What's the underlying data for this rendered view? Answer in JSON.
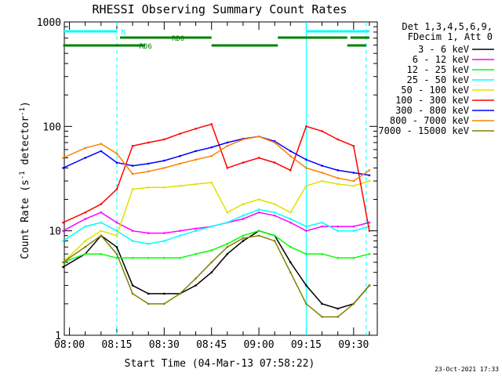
{
  "chart_data": {
    "type": "line",
    "title": "RHESSI Observing Summary Count Rates",
    "xlabel": "Start Time (04-Mar-13 07:58:22)",
    "ylabel_prefix": "Count Rate (s",
    "ylabel_sup1": "-1",
    "ylabel_mid": " detector",
    "ylabel_sup2": "-1",
    "ylabel_suffix": ")",
    "yscale": "log",
    "ylim": [
      1,
      1000
    ],
    "xlim": [
      "07:58:22",
      "09:37:30"
    ],
    "x_ticks": [
      "08:00",
      "08:15",
      "08:30",
      "08:45",
      "09:00",
      "09:15",
      "09:30"
    ],
    "y_ticks": [
      "1",
      "10",
      "100",
      "1000"
    ],
    "legend_placement": "right",
    "legend_header": [
      "Det 1,3,4,5,6,9,",
      "FDecim 1, Att 0"
    ],
    "series": [
      {
        "name": "3 - 6 keV",
        "color": "#000000",
        "x": [
          "07:58",
          "08:05",
          "08:10",
          "08:15",
          "08:20",
          "08:25",
          "08:30",
          "08:35",
          "08:40",
          "08:45",
          "08:50",
          "08:55",
          "09:00",
          "09:05",
          "09:10",
          "09:15",
          "09:20",
          "09:25",
          "09:30",
          "09:35"
        ],
        "values": [
          4.5,
          6,
          9,
          7,
          3,
          2.5,
          2.5,
          2.5,
          3,
          4,
          6,
          8,
          10,
          9,
          5,
          3,
          2,
          1.8,
          2,
          3
        ]
      },
      {
        "name": "6 - 12 keV",
        "color": "#ff00ff",
        "x": [
          "07:58",
          "08:05",
          "08:10",
          "08:15",
          "08:20",
          "08:25",
          "08:30",
          "08:35",
          "08:40",
          "08:45",
          "08:50",
          "08:55",
          "09:00",
          "09:05",
          "09:10",
          "09:15",
          "09:20",
          "09:25",
          "09:30",
          "09:35"
        ],
        "values": [
          10,
          13,
          15,
          12,
          10,
          9.5,
          9.5,
          10,
          10.5,
          11,
          12,
          13,
          15,
          14,
          12,
          10,
          11,
          11,
          11,
          12
        ]
      },
      {
        "name": "12 - 25 keV",
        "color": "#00ff00",
        "x": [
          "07:58",
          "08:05",
          "08:10",
          "08:15",
          "08:20",
          "08:25",
          "08:30",
          "08:35",
          "08:40",
          "08:45",
          "08:50",
          "08:55",
          "09:00",
          "09:05",
          "09:10",
          "09:15",
          "09:20",
          "09:25",
          "09:30",
          "09:35"
        ],
        "values": [
          5,
          6,
          6,
          5.5,
          5.5,
          5.5,
          5.5,
          5.5,
          6,
          6.5,
          7.5,
          9,
          10,
          9,
          7,
          6,
          6,
          5.5,
          5.5,
          6
        ]
      },
      {
        "name": "25 - 50 keV",
        "color": "#00ffff",
        "x": [
          "07:58",
          "08:05",
          "08:10",
          "08:15",
          "08:20",
          "08:25",
          "08:30",
          "08:35",
          "08:40",
          "08:45",
          "08:50",
          "08:55",
          "09:00",
          "09:05",
          "09:10",
          "09:15",
          "09:20",
          "09:25",
          "09:30",
          "09:35"
        ],
        "values": [
          8,
          11,
          12,
          10,
          8,
          7.5,
          8,
          9,
          10,
          11,
          12,
          14,
          16,
          15,
          13,
          11,
          12,
          10,
          10,
          11
        ]
      },
      {
        "name": "50 - 100 keV",
        "color": "#e0e000",
        "x": [
          "07:58",
          "08:05",
          "08:10",
          "08:15",
          "08:20",
          "08:25",
          "08:30",
          "08:35",
          "08:40",
          "08:45",
          "08:50",
          "08:55",
          "09:00",
          "09:05",
          "09:10",
          "09:15",
          "09:20",
          "09:25",
          "09:30",
          "09:35"
        ],
        "values": [
          5,
          8,
          10,
          9,
          25,
          26,
          26,
          27,
          28,
          29,
          15,
          18,
          20,
          18,
          15,
          27,
          30,
          28,
          27,
          30
        ]
      },
      {
        "name": "100 - 300 keV",
        "color": "#ff0000",
        "x": [
          "07:58",
          "08:05",
          "08:10",
          "08:15",
          "08:20",
          "08:25",
          "08:30",
          "08:35",
          "08:40",
          "08:45",
          "08:50",
          "08:55",
          "09:00",
          "09:05",
          "09:10",
          "09:15",
          "09:20",
          "09:25",
          "09:30",
          "09:35"
        ],
        "values": [
          12,
          15,
          18,
          25,
          65,
          70,
          75,
          85,
          95,
          105,
          40,
          45,
          50,
          45,
          38,
          100,
          90,
          75,
          65,
          10
        ]
      },
      {
        "name": "300 - 800 keV",
        "color": "#0000ff",
        "x": [
          "07:58",
          "08:05",
          "08:10",
          "08:15",
          "08:20",
          "08:25",
          "08:30",
          "08:35",
          "08:40",
          "08:45",
          "08:50",
          "08:55",
          "09:00",
          "09:05",
          "09:10",
          "09:15",
          "09:20",
          "09:25",
          "09:30",
          "09:35"
        ],
        "values": [
          40,
          50,
          58,
          45,
          42,
          44,
          47,
          52,
          58,
          63,
          70,
          76,
          80,
          72,
          58,
          48,
          42,
          38,
          36,
          34
        ]
      },
      {
        "name": "800 - 7000 keV",
        "color": "#ff8000",
        "x": [
          "07:58",
          "08:05",
          "08:10",
          "08:15",
          "08:20",
          "08:25",
          "08:30",
          "08:35",
          "08:40",
          "08:45",
          "08:50",
          "08:55",
          "09:00",
          "09:05",
          "09:10",
          "09:15",
          "09:20",
          "09:25",
          "09:30",
          "09:35"
        ],
        "values": [
          50,
          62,
          68,
          55,
          35,
          37,
          40,
          44,
          48,
          52,
          65,
          75,
          80,
          70,
          52,
          40,
          36,
          32,
          30,
          38
        ]
      },
      {
        "name": "7000 - 15000 keV",
        "color": "#808000",
        "x": [
          "07:58",
          "08:05",
          "08:10",
          "08:15",
          "08:20",
          "08:25",
          "08:30",
          "08:35",
          "08:40",
          "08:45",
          "08:50",
          "08:55",
          "09:00",
          "09:05",
          "09:10",
          "09:15",
          "09:20",
          "09:25",
          "09:30",
          "09:35"
        ],
        "values": [
          5,
          7,
          9,
          6,
          2.5,
          2,
          2,
          2.5,
          3.5,
          5,
          7,
          8.5,
          9,
          8,
          4,
          2,
          1.5,
          1.5,
          2,
          3
        ]
      }
    ],
    "state_bars": [
      {
        "name": "N",
        "color": "#00ffff",
        "segments": [
          [
            "07:58",
            "08:15"
          ],
          [
            "09:15",
            "09:35"
          ]
        ]
      },
      {
        "name": "RD0",
        "color": "#008000",
        "segments": [
          [
            "08:16",
            "08:45"
          ],
          [
            "09:06",
            "09:28"
          ],
          [
            "09:29",
            "09:35"
          ]
        ]
      },
      {
        "name": "RD6",
        "color": "#008000",
        "segments": [
          [
            "07:58",
            "08:24"
          ],
          [
            "08:45",
            "09:06"
          ],
          [
            "09:28",
            "09:34"
          ]
        ]
      }
    ],
    "vlines": [
      {
        "x": "08:15",
        "color": "#00ffff",
        "style": "dashed"
      },
      {
        "x": "09:15",
        "color": "#00ffff",
        "style": "solid"
      },
      {
        "x": "09:34",
        "color": "#00ffff",
        "style": "dashed"
      }
    ]
  },
  "footer": {
    "date": "23-Oct-2021 17:33"
  }
}
